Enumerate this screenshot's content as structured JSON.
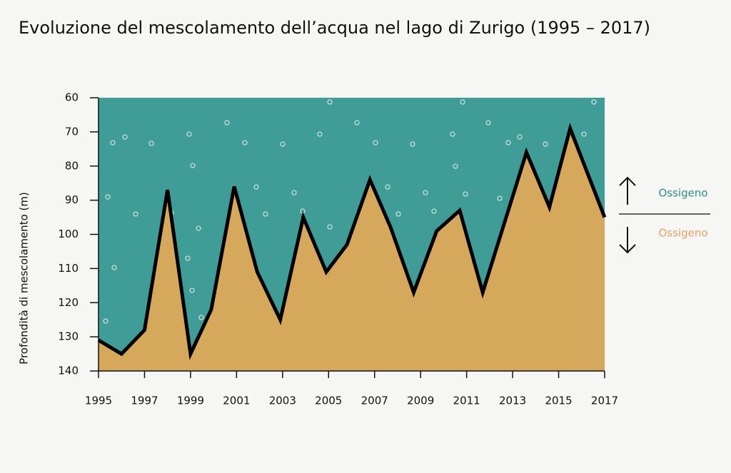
{
  "chart_data": {
    "type": "area-line",
    "title": "Evoluzione del mescolamento dell’acqua nel lago di Zurigo (1995 – 2017)",
    "y_label": "Profondità di mescolamento (m)",
    "x": [
      1995.0,
      1996.0,
      1997.0,
      1998.0,
      1999.0,
      1999.9,
      2000.9,
      2001.9,
      2002.9,
      2003.9,
      2004.9,
      2005.8,
      2006.8,
      2007.7,
      2008.7,
      2009.7,
      2010.7,
      2011.7,
      2013.6,
      2014.6,
      2015.5,
      2017.0
    ],
    "values": [
      131,
      135,
      128,
      87,
      135,
      122,
      86,
      111,
      125,
      95,
      111,
      103,
      84,
      98,
      117,
      99,
      93,
      117,
      76,
      92,
      69,
      95
    ],
    "xlim": [
      1995,
      2017
    ],
    "xticks": [
      1995,
      1997,
      1999,
      2001,
      2003,
      2005,
      2007,
      2009,
      2011,
      2013,
      2015,
      2017
    ],
    "ylim": [
      60,
      140
    ],
    "yticks": [
      60,
      70,
      80,
      90,
      100,
      110,
      120,
      130,
      140
    ],
    "y_inverted": true,
    "line_color": "#000000",
    "above_color": "#3f9c97",
    "below_color": "#d6a85c",
    "legend": [
      {
        "label": "Ossigeno",
        "color": "#2f8e88",
        "arrow": "up"
      },
      {
        "label": "Ossigeno",
        "color": "#e8a265",
        "arrow": "down"
      }
    ]
  }
}
